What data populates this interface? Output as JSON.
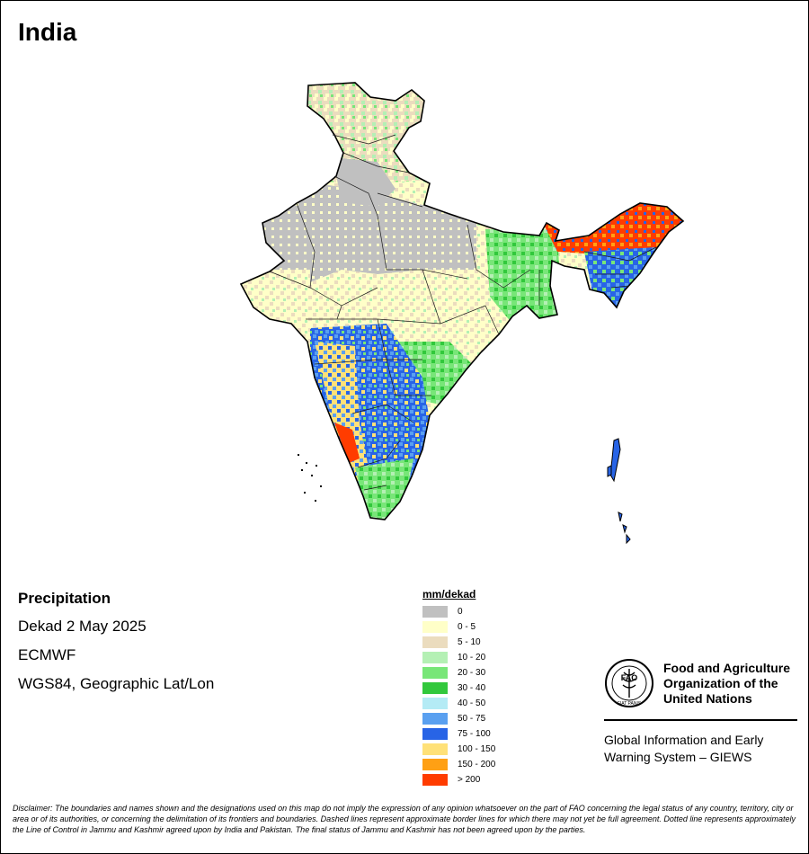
{
  "map_title": "India",
  "info": {
    "heading": "Precipitation",
    "period": "Dekad 2 May 2025",
    "source": "ECMWF",
    "projection": "WGS84, Geographic Lat/Lon"
  },
  "legend": {
    "title": "mm/dekad",
    "classes": [
      {
        "label": "0",
        "color": "#c0c0c0"
      },
      {
        "label": "0 - 5",
        "color": "#ffffc8"
      },
      {
        "label": "5 - 10",
        "color": "#ebdcbe"
      },
      {
        "label": "10 - 20",
        "color": "#b4f0b4"
      },
      {
        "label": "20 - 30",
        "color": "#78e678"
      },
      {
        "label": "30 - 40",
        "color": "#32c83c"
      },
      {
        "label": "40 - 50",
        "color": "#b4ebf5"
      },
      {
        "label": "50 - 75",
        "color": "#5aa0f0"
      },
      {
        "label": "75 - 100",
        "color": "#2864e6"
      },
      {
        "label": "100 - 150",
        "color": "#ffe178"
      },
      {
        "label": "150 - 200",
        "color": "#ffa014"
      },
      {
        "label": "> 200",
        "color": "#ff3c00"
      }
    ]
  },
  "logo": {
    "emblem_text": "FAO",
    "emblem_motto": "FIAT PANIS",
    "org_line1": "Food and Agriculture",
    "org_line2": "Organization of the",
    "org_line3": "United Nations",
    "system_line1": "Global Information and Early",
    "system_line2": "Warning System – GIEWS"
  },
  "disclaimer": "Disclaimer: The boundaries and names shown and the designations used on this map do not imply the expression of any opinion whatsoever on the part of FAO concerning the legal status of any country, territory, city or area or of its authorities, or concerning the delimitation of its frontiers and boundaries. Dashed lines represent approximate border lines for which there may not yet be full agreement. Dotted line represents approximately the Line of Control in Jammu and Kashmir agreed upon by India and Pakistan. The final status of Jammu and Kashmir has not been agreed upon by the parties."
}
